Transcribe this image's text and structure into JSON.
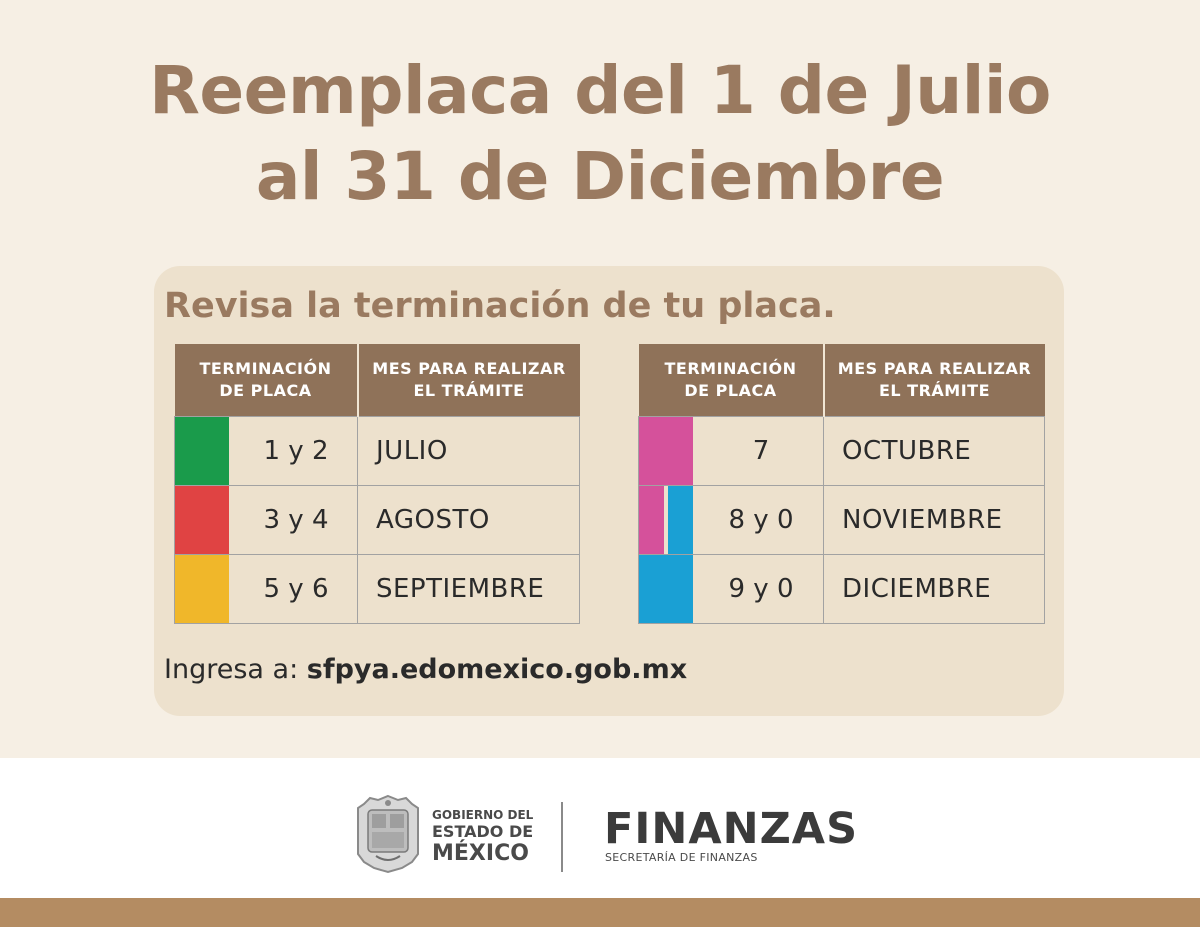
{
  "headline": {
    "line1": "Reemplaca del 1 de Julio",
    "line2": "al 31 de Diciembre"
  },
  "card": {
    "subtitle": "Revisa la terminación de tu placa.",
    "headers": {
      "termination_l1": "TERMINACIÓN",
      "termination_l2": "DE PLACA",
      "month_l1": "MES PARA REALIZAR",
      "month_l2": "EL TRÁMITE"
    },
    "left_rows": [
      {
        "termination": "1 y 2",
        "month": "JULIO",
        "color": "#1a9b4b"
      },
      {
        "termination": "3 y 4",
        "month": "AGOSTO",
        "color": "#e04343"
      },
      {
        "termination": "5 y 6",
        "month": "SEPTIEMBRE",
        "color": "#f0b72a"
      }
    ],
    "right_rows": [
      {
        "termination": "7",
        "month": "OCTUBRE",
        "color": "#d5519b"
      },
      {
        "termination": "8 y 0",
        "month": "NOVIEMBRE",
        "color_a": "#d5519b",
        "color_b": "#1aa0d4"
      },
      {
        "termination": "9 y 0",
        "month": "DICIEMBRE",
        "color": "#1aa0d4"
      }
    ],
    "link_prefix": "Ingresa a:",
    "link_url": "sfpya.edomexico.gob.mx"
  },
  "footer": {
    "gov_line1": "GOBIERNO DEL",
    "gov_line2": "ESTADO DE",
    "gov_line3": "MÉXICO",
    "finanzas_title": "FINANZAS",
    "finanzas_sub": "SECRETARÍA DE FINANZAS"
  },
  "colors": {
    "background": "#f6efe4",
    "card": "#ede1cd",
    "headline": "#9a7a60",
    "table_header": "#8f7259",
    "bottom_bar": "#b48c62"
  }
}
